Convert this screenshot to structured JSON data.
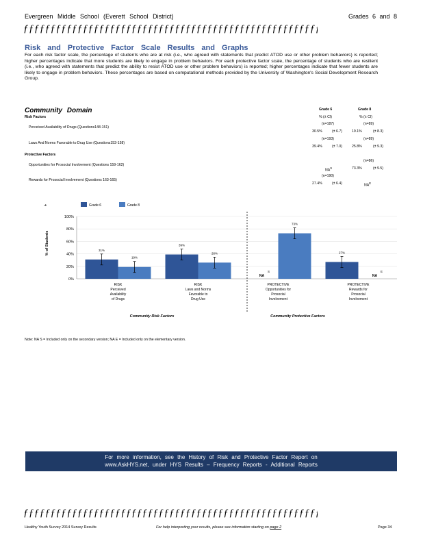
{
  "header": {
    "left": "Evergreen Middle School (Everett School District)",
    "right": "Grades 6 and 8"
  },
  "decor_line": "ƒƒƒƒƒƒƒƒƒƒƒƒƒƒƒƒƒƒƒƒƒƒƒƒƒƒƒƒƒƒƒƒƒƒƒƒƒƒƒƒƒƒƒƒƒƒƒƒƒƒƒƒƒƒƒƒƒƒƒƒƒƒƒƒƒƒ",
  "section_title": "Risk and Protective Factor Scale Results and Graphs",
  "intro": "For each risk factor scale, the percentage of students who are at risk (i.e., who agreed with statements that predict ATOD use or other problem behaviors) is reported; higher percentages indicate that more students are likely to engage in problem behaviors. For each protective factor scale, the percentage of students who are resilient (i.e., who agreed with statements that predict the ability to resist ATOD use or other problem behaviors) is reported; higher percentages indicate that fewer students are likely to engage in problem behaviors. These percentages are based on computational methods provided by the University of Washington's Social Development Research Group.",
  "domain_title": "Community Domain",
  "table": {
    "col_grade6": "Grade 6",
    "col_grade8": "Grade 8",
    "col_ci": "% (± CI)",
    "risk_label": "Risk Factors",
    "protective_label": "Protective Factors",
    "rows": [
      {
        "label": "Perceived Availability of Drugs (Questions148-151)",
        "n6": "(n=187)",
        "v6": "30.5%",
        "ci6": "(± 6.7)",
        "n8": "(n=89)",
        "v8": "19.1%",
        "ci8": "(± 8.3)"
      },
      {
        "label": "Laws And Norms Favorable to Drug Use (Questions153-158)",
        "n6": "(n=193)",
        "v6": "39.4%",
        "ci6": "(± 7.0)",
        "n8": "(n=89)",
        "v8": "25.8%",
        "ci8": "(± 9.3)"
      },
      {
        "label": "Opportunities for Prosocial Involvement (Questions 159-162)",
        "n6": "",
        "v6": "NA",
        "sup6": "S",
        "ci6": "",
        "n8": "(n=86)",
        "v8": "73.3%",
        "ci8": "(± 9.5)"
      },
      {
        "label": "Rewards for Prosocial Involvement (Questions 163-165)",
        "n6": "(n=190)",
        "v6": "27.4%",
        "ci6": "(± 6.4)",
        "n8": "",
        "v8": "NA",
        "sup8": "E",
        "ci8": ""
      }
    ]
  },
  "chart_data": {
    "type": "bar",
    "ylabel": "% of Students",
    "ylim": [
      0,
      100
    ],
    "yticks": [
      "0%",
      "20%",
      "40%",
      "60%",
      "80%",
      "100%"
    ],
    "legend_marker": "➜",
    "categories": [
      {
        "lines": [
          "RISK",
          "Perceived",
          "Availability",
          "of Drugs"
        ]
      },
      {
        "lines": [
          "RISK",
          "Laws and Norms",
          "Favorable to",
          "Drug Use"
        ]
      },
      {
        "lines": [
          "PROTECTIVE",
          "Opportunities for",
          "Prosocial",
          "Involvement"
        ]
      },
      {
        "lines": [
          "PROTECTIVE",
          "Rewards for",
          "Prosocial",
          "Involvement"
        ]
      }
    ],
    "series": [
      {
        "name": "Grade 6",
        "color": "#2f5597",
        "values": [
          31,
          39,
          null,
          27
        ],
        "labels": [
          "31%",
          "39%",
          "NA",
          "27%"
        ],
        "na_sup": [
          "",
          "",
          "S",
          ""
        ]
      },
      {
        "name": "Grade 8",
        "color": "#4a7cc0",
        "values": [
          19,
          26,
          73,
          null
        ],
        "labels": [
          "19%",
          "26%",
          "73%",
          "NA"
        ],
        "na_sup": [
          "",
          "",
          "",
          "E"
        ]
      }
    ],
    "group_labels": [
      "Community Risk Factors",
      "Community Protective Factors"
    ]
  },
  "note": "Note: NA S = Included only on the secondary version; NA E = Included only on the elementary version.",
  "info_band": {
    "line1": "For more information, see the History of Risk and Protective Factor Report on",
    "line2": "www.AskHYS.net, under HYS Results – Frequency Reports - Additional Reports"
  },
  "footer": {
    "left": "Healthy Youth Survey 2014 Survey Results",
    "center_prefix": "For help interpreting your results, please see information starting on",
    "center_link": "page 2",
    "right": "Page 34"
  }
}
